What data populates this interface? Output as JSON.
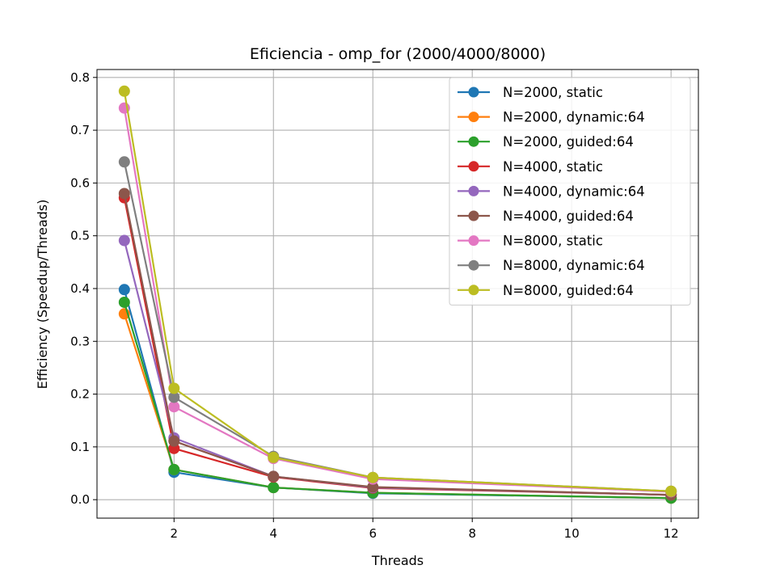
{
  "chart_data": {
    "type": "line",
    "title": "Eficiencia - omp_for (2000/4000/8000)",
    "xlabel": "Threads",
    "ylabel": "Efficiency (Speedup/Threads)",
    "x": [
      1,
      2,
      4,
      6,
      12
    ],
    "xticks": [
      2,
      4,
      6,
      8,
      10,
      12
    ],
    "yticks": [
      0.0,
      0.1,
      0.2,
      0.3,
      0.4,
      0.5,
      0.6,
      0.7,
      0.8
    ],
    "xlim": [
      0.45,
      12.55
    ],
    "ylim": [
      -0.035,
      0.815
    ],
    "grid": true,
    "legend_position": "upper right",
    "series": [
      {
        "name": "N=2000, static",
        "color": "#1f77b4",
        "values": [
          0.398,
          0.052,
          0.023,
          0.012,
          0.003
        ]
      },
      {
        "name": "N=2000, dynamic:64",
        "color": "#ff7f0e",
        "values": [
          0.352,
          0.057,
          0.023,
          0.013,
          0.003
        ]
      },
      {
        "name": "N=2000, guided:64",
        "color": "#2ca02c",
        "values": [
          0.374,
          0.057,
          0.023,
          0.013,
          0.003
        ]
      },
      {
        "name": "N=4000, static",
        "color": "#d62728",
        "values": [
          0.572,
          0.097,
          0.043,
          0.022,
          0.009
        ]
      },
      {
        "name": "N=4000, dynamic:64",
        "color": "#9467bd",
        "values": [
          0.491,
          0.117,
          0.044,
          0.023,
          0.009
        ]
      },
      {
        "name": "N=4000, guided:64",
        "color": "#8c564b",
        "values": [
          0.58,
          0.111,
          0.044,
          0.024,
          0.009
        ]
      },
      {
        "name": "N=8000, static",
        "color": "#e377c2",
        "values": [
          0.742,
          0.176,
          0.078,
          0.039,
          0.015
        ]
      },
      {
        "name": "N=8000, dynamic:64",
        "color": "#7f7f7f",
        "values": [
          0.64,
          0.194,
          0.082,
          0.042,
          0.016
        ]
      },
      {
        "name": "N=8000, guided:64",
        "color": "#bcbd22",
        "values": [
          0.774,
          0.211,
          0.08,
          0.042,
          0.016
        ]
      }
    ]
  }
}
